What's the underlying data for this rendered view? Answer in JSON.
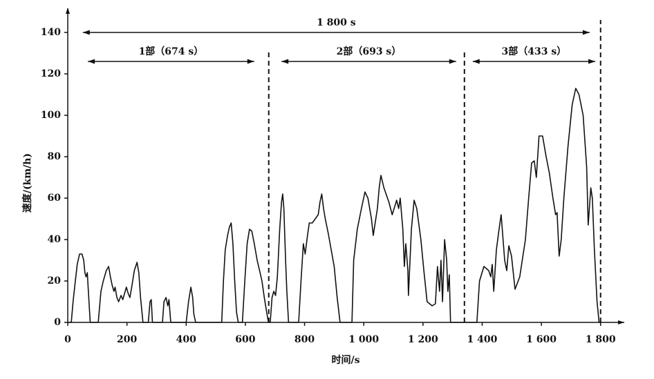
{
  "chart_data": {
    "type": "line",
    "x_label": "时间/s",
    "y_label": "速度/(km/h)",
    "xlim": [
      0,
      1880
    ],
    "ylim": [
      0,
      150
    ],
    "xticks": [
      0,
      200,
      400,
      600,
      800,
      {
        "value": 1000,
        "label": "1 000"
      },
      {
        "value": 1200,
        "label": "1 200"
      },
      {
        "value": 1400,
        "label": "1 400"
      },
      {
        "value": 1600,
        "label": "1 600"
      },
      {
        "value": 1800,
        "label": "1 800"
      }
    ],
    "yticks": [
      0,
      20,
      40,
      60,
      80,
      100,
      120,
      140
    ],
    "color": "#111111",
    "dividers": [
      679,
      1340,
      1800
    ],
    "annotations": [
      {
        "text": "1 800 s",
        "x": [
          51,
          1763
        ],
        "y": 140
      },
      {
        "text": "1部（674 s）",
        "x": [
          68,
          630
        ],
        "y": 126
      },
      {
        "text": "2部（693 s）",
        "x": [
          722,
          1312
        ],
        "y": 126
      },
      {
        "text": "3部（433 s）",
        "x": [
          1368,
          1782
        ],
        "y": 126
      }
    ],
    "x": [
      0,
      12,
      18,
      24,
      32,
      40,
      48,
      54,
      58,
      62,
      66,
      70,
      76,
      103,
      112,
      120,
      130,
      138,
      144,
      150,
      156,
      160,
      166,
      172,
      180,
      186,
      192,
      198,
      204,
      210,
      216,
      225,
      234,
      240,
      246,
      254,
      272,
      278,
      282,
      286,
      320,
      325,
      332,
      338,
      342,
      348,
      400,
      408,
      416,
      422,
      426,
      432,
      520,
      526,
      532,
      540,
      546,
      552,
      558,
      564,
      570,
      576,
      590,
      598,
      606,
      614,
      622,
      630,
      640,
      648,
      656,
      664,
      672,
      678,
      684,
      690,
      696,
      702,
      708,
      716,
      722,
      726,
      730,
      736,
      740,
      746,
      752,
      780,
      788,
      796,
      802,
      810,
      816,
      826,
      836,
      846,
      852,
      858,
      864,
      870,
      880,
      890,
      900,
      910,
      920,
      960,
      966,
      978,
      992,
      1004,
      1014,
      1026,
      1032,
      1046,
      1052,
      1058,
      1068,
      1085,
      1096,
      1107,
      1111,
      1118,
      1123,
      1132,
      1137,
      1142,
      1149,
      1151,
      1161,
      1170,
      1179,
      1193,
      1203,
      1214,
      1231,
      1242,
      1249,
      1256,
      1261,
      1266,
      1273,
      1280,
      1284,
      1289,
      1293,
      1382,
      1391,
      1406,
      1422,
      1429,
      1434,
      1439,
      1448,
      1457,
      1464,
      1476,
      1483,
      1490,
      1499,
      1511,
      1527,
      1546,
      1557,
      1567,
      1576,
      1583,
      1592,
      1604,
      1616,
      1627,
      1639,
      1648,
      1653,
      1660,
      1667,
      1676,
      1690,
      1704,
      1716,
      1727,
      1741,
      1753,
      1758,
      1767,
      1772,
      1779,
      1788,
      1795,
      1800
    ],
    "values": [
      0,
      0,
      10,
      18,
      28,
      33,
      33,
      30,
      24,
      22,
      24,
      14,
      0,
      0,
      15,
      20,
      25,
      27,
      22,
      18,
      15,
      17,
      12,
      10,
      13,
      11,
      14,
      17,
      14,
      12,
      17,
      25,
      29,
      24,
      12,
      0,
      0,
      10,
      11,
      0,
      0,
      10,
      12,
      8,
      11,
      0,
      0,
      10,
      17,
      12,
      4,
      0,
      0,
      20,
      35,
      42,
      46,
      48,
      38,
      20,
      5,
      0,
      0,
      20,
      38,
      45,
      44,
      38,
      30,
      25,
      20,
      12,
      5,
      0,
      0,
      12,
      15,
      13,
      22,
      45,
      58,
      62,
      55,
      30,
      15,
      0,
      0,
      0,
      20,
      38,
      33,
      42,
      48,
      48,
      50,
      52,
      58,
      62,
      55,
      50,
      43,
      35,
      27,
      12,
      0,
      0,
      30,
      45,
      55,
      63,
      60,
      50,
      42,
      55,
      65,
      71,
      65,
      58,
      52,
      57,
      59,
      55,
      60,
      45,
      27,
      38,
      25,
      13,
      45,
      59,
      55,
      40,
      25,
      10,
      8,
      9,
      27,
      15,
      30,
      10,
      40,
      30,
      15,
      23,
      0,
      0,
      20,
      27,
      25,
      22,
      28,
      15,
      35,
      45,
      52,
      30,
      25,
      37,
      32,
      16,
      22,
      40,
      60,
      77,
      78,
      70,
      90,
      90,
      80,
      72,
      60,
      52,
      53,
      32,
      40,
      60,
      85,
      105,
      113,
      110,
      100,
      75,
      47,
      65,
      60,
      35,
      10,
      0,
      0
    ]
  }
}
